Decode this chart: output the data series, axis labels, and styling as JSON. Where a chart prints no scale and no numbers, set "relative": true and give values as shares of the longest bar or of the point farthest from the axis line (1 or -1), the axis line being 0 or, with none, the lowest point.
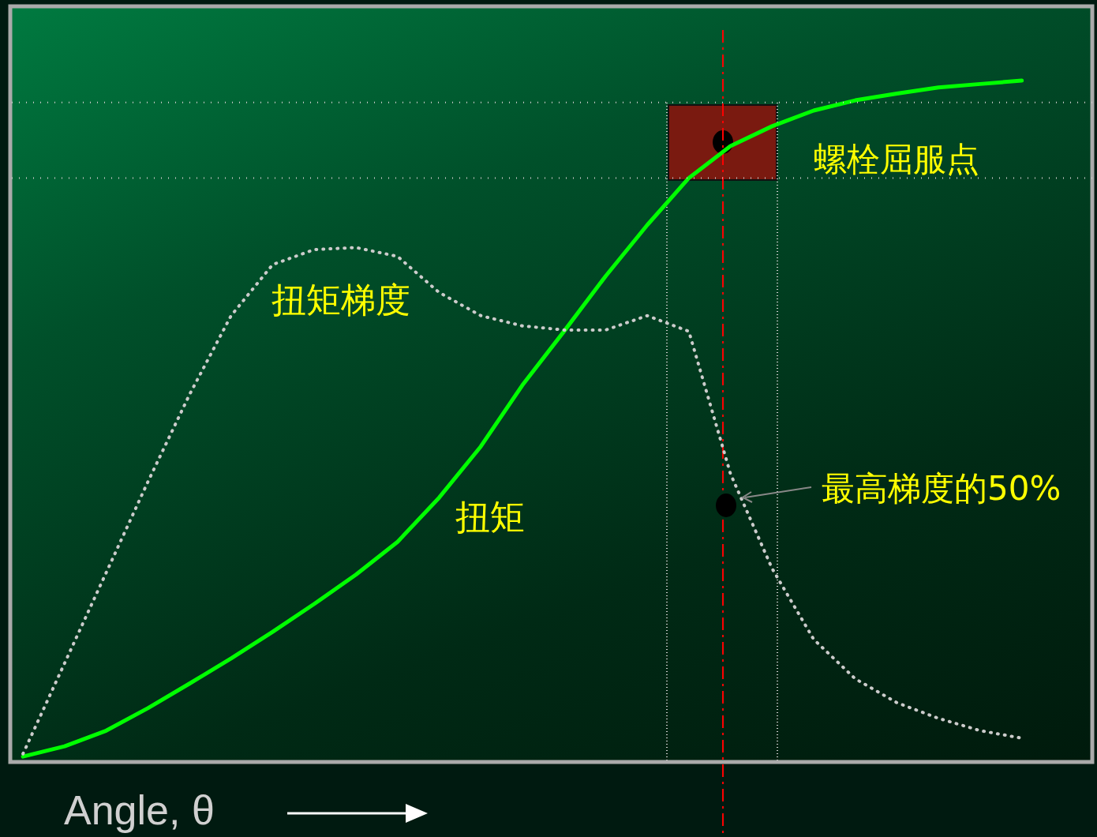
{
  "chart_data": {
    "type": "line",
    "relative": true,
    "xlabel": "Angle, θ",
    "tick_labels": false,
    "marker": "none",
    "categories": [
      null,
      null,
      null,
      null,
      null,
      null,
      null,
      null,
      null,
      null,
      null,
      null,
      null,
      null,
      null,
      null,
      null,
      null,
      null,
      null,
      null,
      null,
      null,
      null,
      null
    ],
    "series": [
      {
        "name": "扭矩",
        "color": "#00ff00",
        "line_style": "solid",
        "values": [
          0.008,
          0.023,
          0.046,
          0.079,
          0.115,
          0.152,
          0.191,
          0.232,
          0.275,
          0.323,
          0.388,
          0.463,
          0.553,
          0.632,
          0.713,
          0.788,
          0.857,
          0.904,
          0.933,
          0.956,
          0.971,
          0.981,
          0.99,
          0.995,
          1
        ]
      },
      {
        "name": "扭矩梯度",
        "color": "#cccccc",
        "line_style": "dotted",
        "values": [
          0.012,
          0.145,
          0.278,
          0.411,
          0.539,
          0.655,
          0.73,
          0.752,
          0.755,
          0.742,
          0.689,
          0.655,
          0.64,
          0.634,
          0.634,
          0.655,
          0.632,
          0.423,
          0.284,
          0.18,
          0.122,
          0.087,
          0.064,
          0.046,
          0.035
        ]
      }
    ],
    "ref_lines": [
      {
        "axis": "y",
        "value": 0.968,
        "color": "#cccccc",
        "line_style": "dotted"
      },
      {
        "axis": "y",
        "value": 0.857,
        "color": "#cccccc",
        "line_style": "dotted"
      }
    ],
    "annotations": [
      "螺栓屈服点",
      "最高梯度的50%"
    ]
  }
}
